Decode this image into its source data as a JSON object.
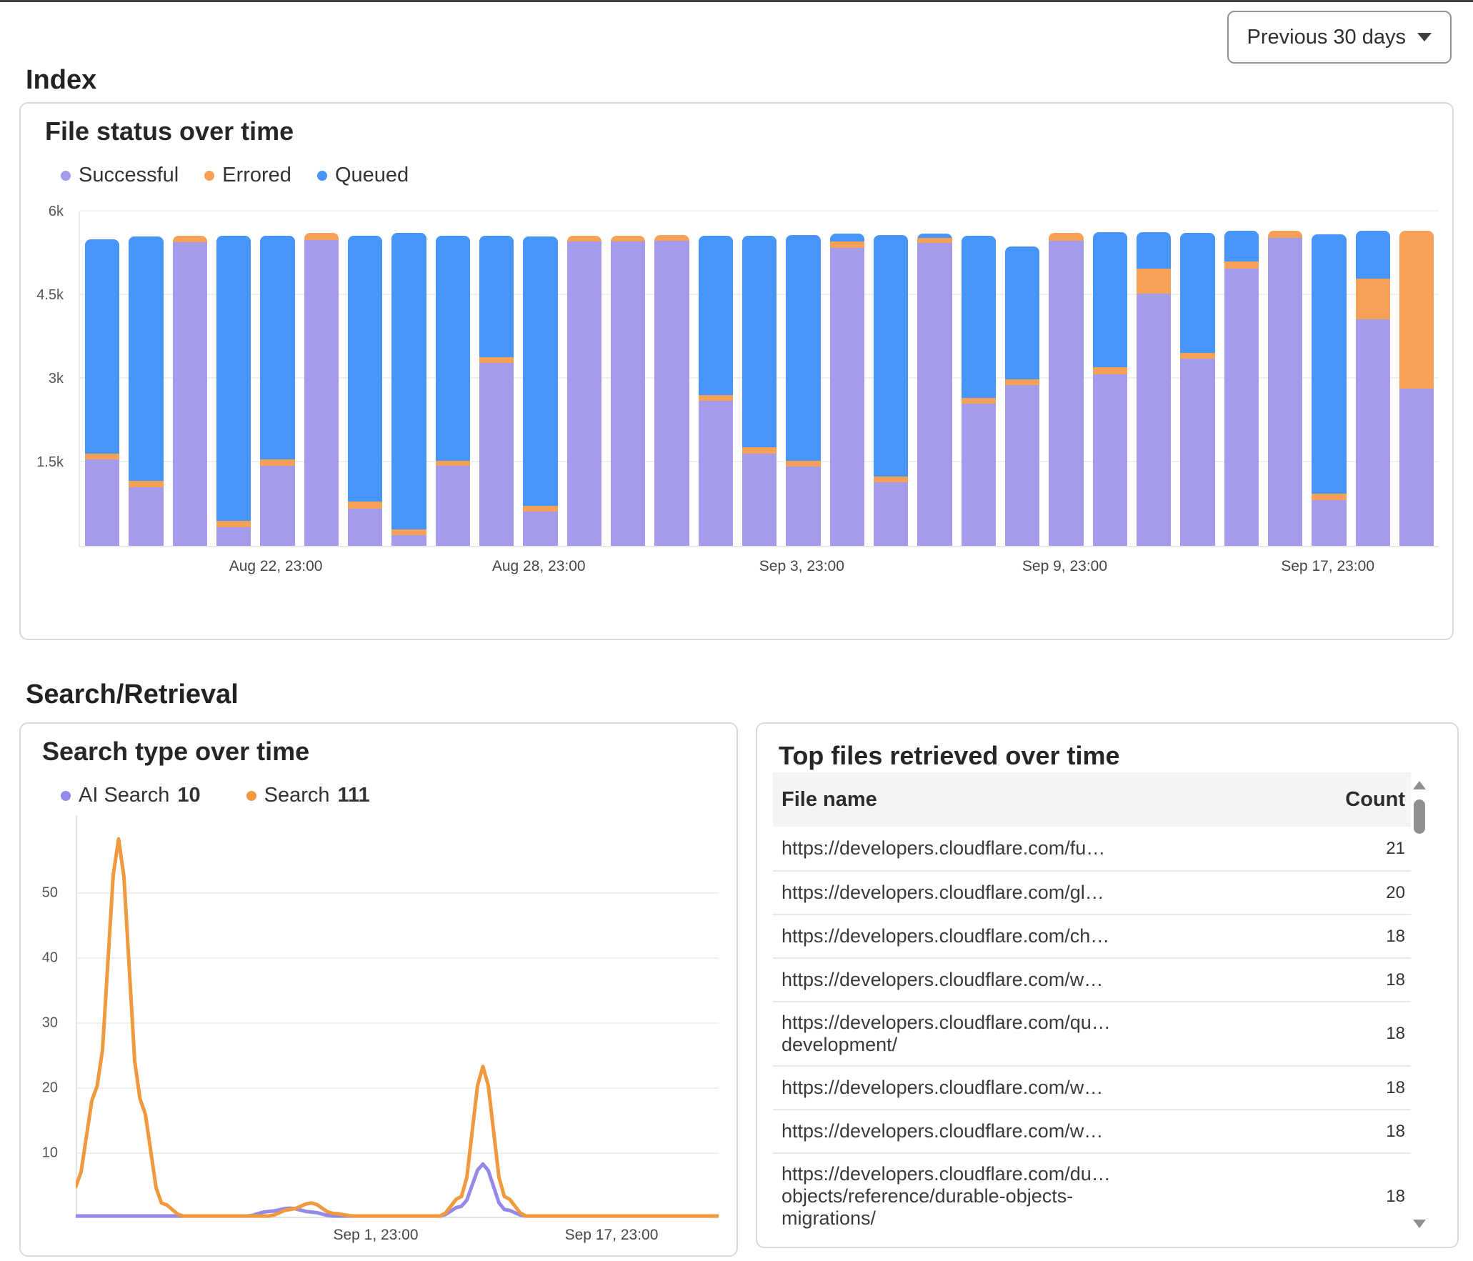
{
  "toolbar": {
    "timeframe_label": "Previous 30 days"
  },
  "sections": {
    "index": "Index",
    "search_retrieval": "Search/Retrieval"
  },
  "chart_data": [
    {
      "type": "bar",
      "stacked": true,
      "title": "File status over time",
      "ylim": [
        0,
        6000
      ],
      "grid": true,
      "legend_position": "top",
      "y_ticks": [
        {
          "value": 1500,
          "label": "1.5k"
        },
        {
          "value": 3000,
          "label": "3k"
        },
        {
          "value": 4500,
          "label": "4.5k"
        },
        {
          "value": 6000,
          "label": "6k"
        }
      ],
      "x_tick_labels": [
        {
          "index": 4,
          "label": "Aug 22, 23:00"
        },
        {
          "index": 10,
          "label": "Aug 28, 23:00"
        },
        {
          "index": 16,
          "label": "Sep 3, 23:00"
        },
        {
          "index": 22,
          "label": "Sep 9, 23:00"
        },
        {
          "index": 28,
          "label": "Sep 17, 23:00"
        }
      ],
      "series": [
        {
          "name": "Successful",
          "color": "#A49BEC",
          "values": [
            1550,
            1050,
            5450,
            330,
            1430,
            5490,
            670,
            190,
            1430,
            3280,
            620,
            5460,
            5460,
            5470,
            2600,
            1660,
            1420,
            5350,
            1140,
            5440,
            2550,
            2890,
            5480,
            3080,
            4530,
            3360,
            4980,
            5530,
            820,
            4070,
            2820
          ]
        },
        {
          "name": "Errored",
          "color": "#F6A156",
          "values": [
            100,
            120,
            120,
            120,
            120,
            120,
            120,
            110,
            100,
            100,
            100,
            110,
            110,
            110,
            110,
            110,
            110,
            110,
            110,
            90,
            110,
            100,
            130,
            120,
            440,
            100,
            120,
            120,
            110,
            730,
            2840
          ]
        },
        {
          "name": "Queued",
          "color": "#4795F8",
          "values": [
            3850,
            4380,
            0,
            5120,
            4010,
            0,
            4780,
            5310,
            4030,
            2190,
            4830,
            0,
            0,
            0,
            2850,
            3790,
            4050,
            140,
            4330,
            70,
            2910,
            2380,
            0,
            2430,
            660,
            2160,
            550,
            0,
            4660,
            850,
            0
          ]
        }
      ]
    },
    {
      "type": "line",
      "title": "Search type over time",
      "xlim": [
        0,
        30
      ],
      "ylim": [
        0,
        60
      ],
      "grid": true,
      "legend_position": "top",
      "y_ticks": [
        10,
        20,
        30,
        40,
        50
      ],
      "x_tick_labels": [
        {
          "x": 14,
          "label": "Sep 1, 23:00"
        },
        {
          "x": 25,
          "label": "Sep 17, 23:00"
        }
      ],
      "series": [
        {
          "name": "AI Search",
          "total": 10,
          "color": "#9389E9",
          "points": [
            [
              0,
              0
            ],
            [
              8,
              0
            ],
            [
              9,
              0.7
            ],
            [
              10,
              1.2
            ],
            [
              11,
              0.6
            ],
            [
              12,
              0
            ],
            [
              17,
              0
            ],
            [
              18,
              1.5
            ],
            [
              19,
              8
            ],
            [
              20,
              1
            ],
            [
              21,
              0
            ],
            [
              30,
              0
            ]
          ]
        },
        {
          "name": "Search",
          "total": 111,
          "color": "#F0993E",
          "points": [
            [
              0,
              4.5
            ],
            [
              1,
              20
            ],
            [
              2,
              58
            ],
            [
              3,
              18
            ],
            [
              4,
              2
            ],
            [
              5,
              0
            ],
            [
              9,
              0
            ],
            [
              10,
              1
            ],
            [
              11,
              2
            ],
            [
              12,
              0.4
            ],
            [
              13,
              0
            ],
            [
              17,
              0
            ],
            [
              18,
              3
            ],
            [
              19,
              23
            ],
            [
              20,
              3
            ],
            [
              21,
              0
            ],
            [
              30,
              0
            ]
          ]
        }
      ]
    },
    {
      "type": "table",
      "title": "Top files retrieved over time",
      "columns": [
        "File name",
        "Count"
      ],
      "rows": [
        {
          "file_lines": [
            "https://developers.cloudflare.com/fu…"
          ],
          "count": 21
        },
        {
          "file_lines": [
            "https://developers.cloudflare.com/gl…"
          ],
          "count": 20
        },
        {
          "file_lines": [
            "https://developers.cloudflare.com/ch…"
          ],
          "count": 18
        },
        {
          "file_lines": [
            "https://developers.cloudflare.com/w…"
          ],
          "count": 18
        },
        {
          "file_lines": [
            "https://developers.cloudflare.com/qu…",
            "development/"
          ],
          "count": 18
        },
        {
          "file_lines": [
            "https://developers.cloudflare.com/w…"
          ],
          "count": 18
        },
        {
          "file_lines": [
            "https://developers.cloudflare.com/w…"
          ],
          "count": 18
        },
        {
          "file_lines": [
            "https://developers.cloudflare.com/du…",
            "objects/reference/durable-objects-",
            "migrations/"
          ],
          "count": 18
        }
      ]
    }
  ]
}
